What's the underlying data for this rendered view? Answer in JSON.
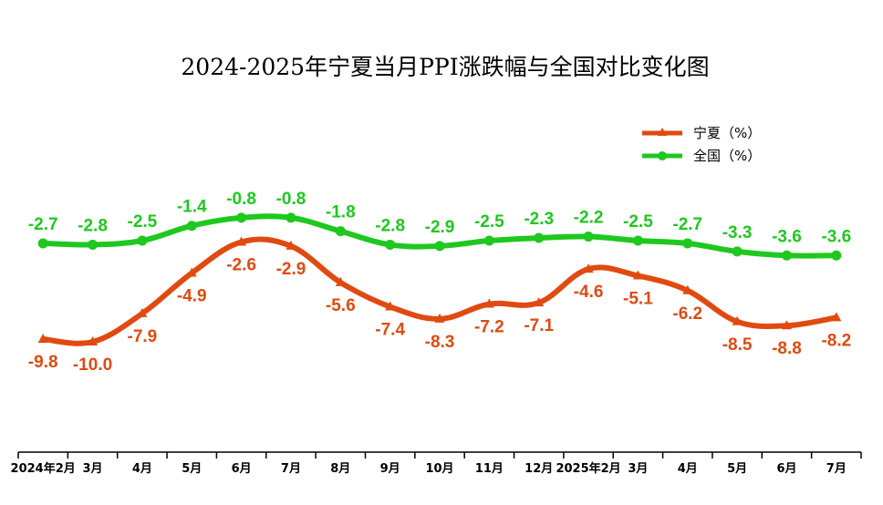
{
  "chart_data": {
    "type": "line",
    "title": "2024-2025年宁夏当月PPI涨跌幅与全国对比变化图",
    "categories": [
      "2024年2月",
      "3月",
      "4月",
      "5月",
      "6月",
      "7月",
      "8月",
      "9月",
      "10月",
      "11月",
      "12月",
      "2025年2月",
      "3月",
      "4月",
      "5月",
      "6月",
      "7月"
    ],
    "series": [
      {
        "name": "宁夏（%）",
        "color": "#e04a10",
        "marker": "triangle",
        "values": [
          -9.8,
          -10.0,
          -7.9,
          -4.9,
          -2.6,
          -2.9,
          -5.6,
          -7.4,
          -8.3,
          -7.2,
          -7.1,
          -4.6,
          -5.1,
          -6.2,
          -8.5,
          -8.8,
          -8.2
        ],
        "labels": [
          "-9.8",
          "-10.0",
          "-7.9",
          "-4.9",
          "-2.6",
          "-2.9",
          "-5.6",
          "-7.4",
          "-8.3",
          "-7.2",
          "-7.1",
          "-4.6",
          "-5.1",
          "-6.2",
          "-8.5",
          "-8.8",
          "-8.2"
        ]
      },
      {
        "name": "全国（%）",
        "color": "#1ec81e",
        "marker": "circle",
        "values": [
          -2.7,
          -2.8,
          -2.5,
          -1.4,
          -0.8,
          -0.8,
          -1.8,
          -2.8,
          -2.9,
          -2.5,
          -2.3,
          -2.2,
          -2.5,
          -2.7,
          -3.3,
          -3.6,
          -3.6
        ],
        "labels": [
          "-2.7",
          "-2.8",
          "-2.5",
          "-1.4",
          "-0.8",
          "-0.8",
          "-1.8",
          "-2.8",
          "-2.9",
          "-2.5",
          "-2.3",
          "-2.2",
          "-2.5",
          "-2.7",
          "-3.3",
          "-3.6",
          "-3.6"
        ]
      }
    ],
    "legend": "top-right",
    "grid": false
  }
}
